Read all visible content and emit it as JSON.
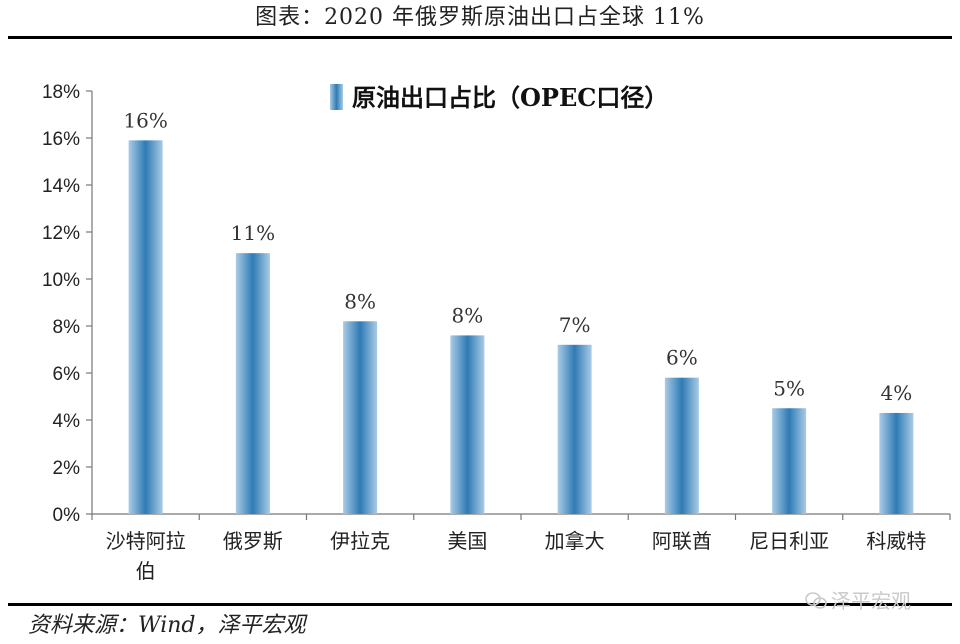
{
  "header": {
    "title": "图表：2020 年俄罗斯原油出口占全球 11%"
  },
  "footer": {
    "source": "资料来源：Wind，泽平宏观",
    "watermark": "泽平宏观"
  },
  "colors": {
    "bar_light": "#a9cbe6",
    "bar_dark": "#2f7bb4",
    "axis": "#777777"
  },
  "chart_data": {
    "type": "bar",
    "title": "",
    "xlabel": "",
    "ylabel": "",
    "legend_position": "top",
    "grid": false,
    "categories": [
      "沙特阿拉伯",
      "俄罗斯",
      "伊拉克",
      "美国",
      "加拿大",
      "阿联酋",
      "尼日利亚",
      "科威特"
    ],
    "category_lines": [
      [
        "沙特阿拉",
        "伯"
      ],
      [
        "俄罗斯"
      ],
      [
        "伊拉克"
      ],
      [
        "美国"
      ],
      [
        "加拿大"
      ],
      [
        "阿联酋"
      ],
      [
        "尼日利亚"
      ],
      [
        "科威特"
      ]
    ],
    "series": [
      {
        "name": "原油出口占比（OPEC口径）",
        "values": [
          15.9,
          11.1,
          8.2,
          7.6,
          7.2,
          5.8,
          4.5,
          4.3
        ],
        "labels": [
          "16%",
          "11%",
          "8%",
          "8%",
          "7%",
          "6%",
          "5%",
          "4%"
        ]
      }
    ],
    "ylim": [
      0,
      18
    ],
    "yticks": [
      0,
      2,
      4,
      6,
      8,
      10,
      12,
      14,
      16,
      18
    ],
    "ytick_labels": [
      "0%",
      "2%",
      "4%",
      "6%",
      "8%",
      "10%",
      "12%",
      "14%",
      "16%",
      "18%"
    ]
  }
}
